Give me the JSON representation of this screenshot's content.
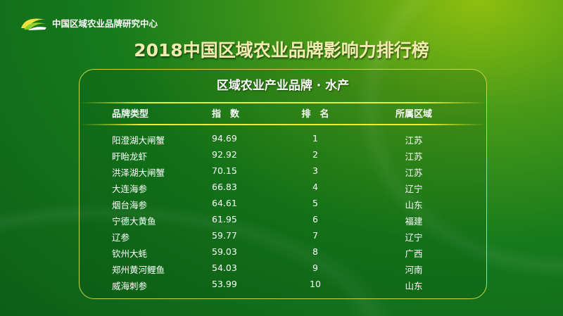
{
  "org": "中国区域农业品牌研究中心",
  "title": "2018中国区域农业品牌影响力排行榜",
  "subtitle": "区域农业产业品牌 · 水产",
  "columns": [
    "品牌类型",
    "指　数",
    "排　名",
    "所属区域"
  ],
  "rows": [
    [
      "阳澄湖大闸蟹",
      "94.69",
      "1",
      "江苏"
    ],
    [
      "盱眙龙虾",
      "92.92",
      "2",
      "江苏"
    ],
    [
      "洪泽湖大闸蟹",
      "70.15",
      "3",
      "江苏"
    ],
    [
      "大连海参",
      "66.83",
      "4",
      "辽宁"
    ],
    [
      "烟台海参",
      "64.61",
      "5",
      "山东"
    ],
    [
      "宁德大黄鱼",
      "61.95",
      "6",
      "福建"
    ],
    [
      "辽参",
      "59.77",
      "7",
      "辽宁"
    ],
    [
      "钦州大蚝",
      "59.03",
      "8",
      "广西"
    ],
    [
      "郑州黄河鲤鱼",
      "54.03",
      "9",
      "河南"
    ],
    [
      "威海刺参",
      "53.99",
      "10",
      "山东"
    ]
  ]
}
